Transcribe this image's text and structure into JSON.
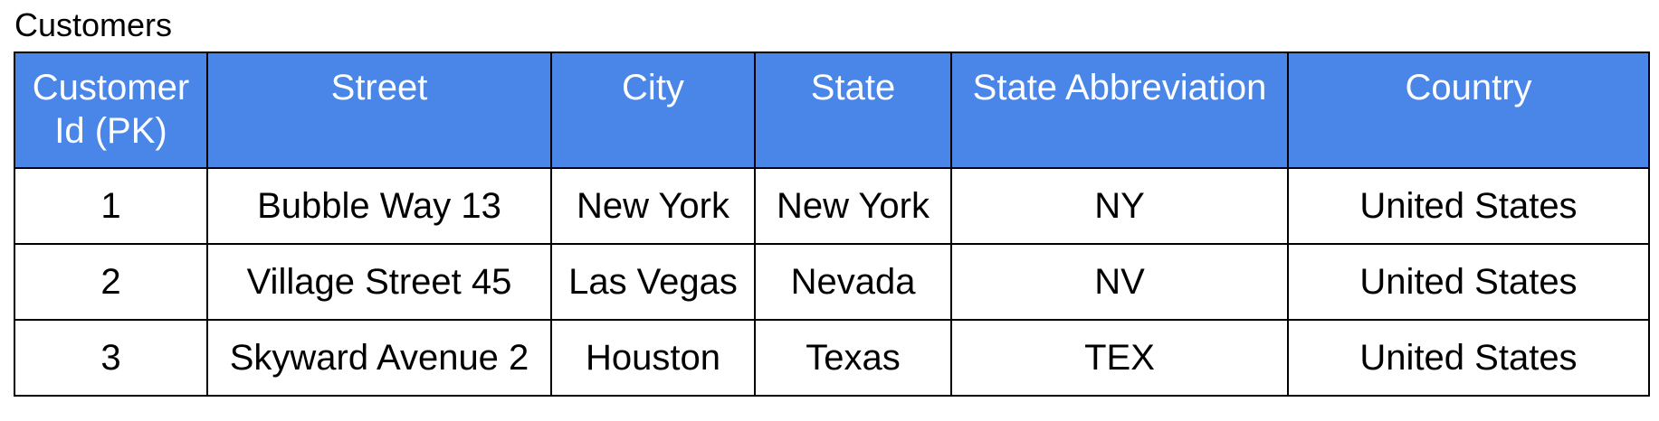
{
  "table": {
    "caption": "Customers",
    "header_color": "#4a86e8",
    "columns": [
      "Customer Id (PK)",
      "Street",
      "City",
      "State",
      "State Abbreviation",
      "Country"
    ],
    "rows": [
      [
        "1",
        "Bubble Way 13",
        "New York",
        "New York",
        "NY",
        "United States"
      ],
      [
        "2",
        "Village Street 45",
        "Las Vegas",
        "Nevada",
        "NV",
        "United States"
      ],
      [
        "3",
        "Skyward Avenue 2",
        "Houston",
        "Texas",
        "TEX",
        "United States"
      ]
    ]
  }
}
